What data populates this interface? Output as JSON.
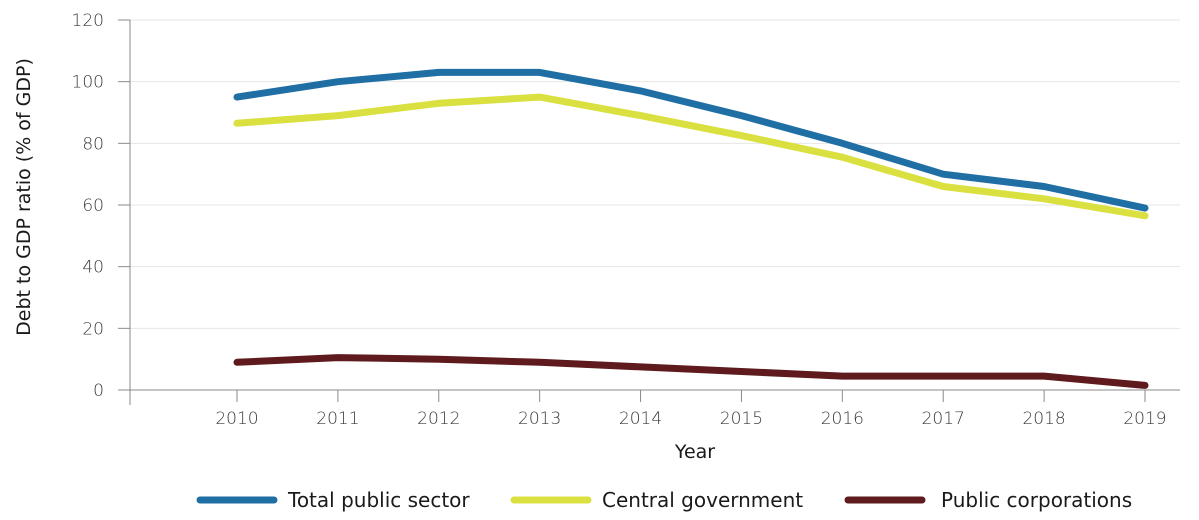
{
  "chart_data": {
    "type": "line",
    "title": "",
    "xlabel": "Year",
    "ylabel": "Debt to GDP ratio (% of GDP)",
    "ylim": [
      0,
      120
    ],
    "yticks": [
      0,
      20,
      40,
      60,
      80,
      100,
      120
    ],
    "grid": "horizontal",
    "legend": "bottom",
    "x": [
      "2010",
      "2011",
      "2012",
      "2013",
      "2014",
      "2015",
      "2016",
      "2017",
      "2018",
      "2019"
    ],
    "series": [
      {
        "name": "Total public sector",
        "color": "#1f6fa5",
        "values": [
          95,
          100,
          103,
          103,
          97,
          89,
          80,
          70,
          66,
          59
        ]
      },
      {
        "name": "Central government",
        "color": "#d9e040",
        "values": [
          86.5,
          89,
          93,
          95,
          89,
          82.5,
          75.5,
          66,
          62,
          56.5
        ]
      },
      {
        "name": "Public corporations",
        "color": "#5e1a1c",
        "values": [
          9,
          10.5,
          10,
          9,
          7.5,
          6,
          4.5,
          4.5,
          4.5,
          1.5
        ]
      }
    ]
  }
}
